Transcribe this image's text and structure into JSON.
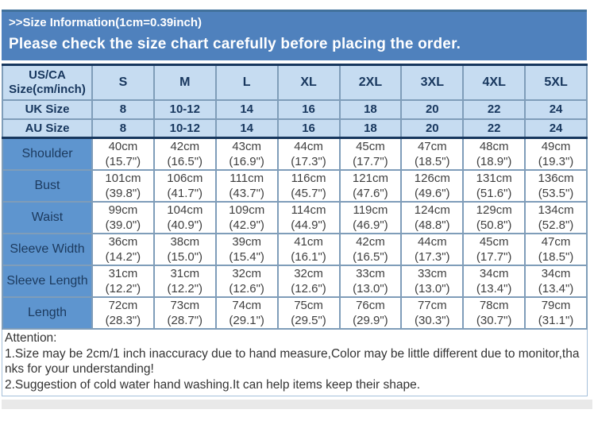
{
  "banner": {
    "title": ">>Size Information(1cm=0.39inch)",
    "subtitle": "Please check the size chart carefully before placing the order."
  },
  "colors": {
    "banner_bg": "#4F81BD",
    "banner_edge": "#41719c",
    "header_bg": "#C6DCF1",
    "label_bg": "#5E95CF",
    "grid_border": "#7f9db9",
    "dark_border": "#17375E",
    "header_text": "#17365D",
    "cell_text": "#3f3f3f",
    "note_text": "#333333"
  },
  "size_table": {
    "columns": [
      "US/CA\nSize(cm/inch)",
      "S",
      "M",
      "L",
      "XL",
      "2XL",
      "3XL",
      "4XL",
      "5XL"
    ],
    "size_rows": [
      {
        "label": "UK Size",
        "values": [
          "8",
          "10-12",
          "14",
          "16",
          "18",
          "20",
          "22",
          "24"
        ]
      },
      {
        "label": "AU Size",
        "values": [
          "8",
          "10-12",
          "14",
          "16",
          "18",
          "20",
          "22",
          "24"
        ]
      }
    ],
    "measure_rows": [
      {
        "label": "Shoulder",
        "cm": [
          "40cm",
          "42cm",
          "43cm",
          "44cm",
          "45cm",
          "47cm",
          "48cm",
          "49cm"
        ],
        "inch": [
          "(15.7\")",
          "(16.5\")",
          "(16.9\")",
          "(17.3\")",
          "(17.7\")",
          "(18.5\")",
          "(18.9\")",
          "(19.3\")"
        ]
      },
      {
        "label": "Bust",
        "cm": [
          "101cm",
          "106cm",
          "111cm",
          "116cm",
          "121cm",
          "126cm",
          "131cm",
          "136cm"
        ],
        "inch": [
          "(39.8\")",
          "(41.7\")",
          "(43.7\")",
          "(45.7\")",
          "(47.6\")",
          "(49.6\")",
          "(51.6\")",
          "(53.5\")"
        ]
      },
      {
        "label": "Waist",
        "cm": [
          "99cm",
          "104cm",
          "109cm",
          "114cm",
          "119cm",
          "124cm",
          "129cm",
          "134cm"
        ],
        "inch": [
          "(39.0\")",
          "(40.9\")",
          "(42.9\")",
          "(44.9\")",
          "(46.9\")",
          "(48.8\")",
          "(50.8\")",
          "(52.8\")"
        ]
      },
      {
        "label": "Sleeve Width",
        "cm": [
          "36cm",
          "38cm",
          "39cm",
          "41cm",
          "42cm",
          "44cm",
          "45cm",
          "47cm"
        ],
        "inch": [
          "(14.2\")",
          "(15.0\")",
          "(15.4\")",
          "(16.1\")",
          "(16.5\")",
          "(17.3\")",
          "(17.7\")",
          "(18.5\")"
        ]
      },
      {
        "label": "Sleeve Length",
        "cm": [
          "31cm",
          "31cm",
          "32cm",
          "32cm",
          "33cm",
          "33cm",
          "34cm",
          "34cm"
        ],
        "inch": [
          "(12.2\")",
          "(12.2\")",
          "(12.6\")",
          "(12.6\")",
          "(13.0\")",
          "(13.0\")",
          "(13.4\")",
          "(13.4\")"
        ]
      },
      {
        "label": "Length",
        "cm": [
          "72cm",
          "73cm",
          "74cm",
          "75cm",
          "76cm",
          "77cm",
          "78cm",
          "79cm"
        ],
        "inch": [
          "(28.3\")",
          "(28.7\")",
          "(29.1\")",
          "(29.5\")",
          "(29.9\")",
          "(30.3\")",
          "(30.7\")",
          "(31.1\")"
        ]
      }
    ]
  },
  "attention": {
    "title": "Attention:",
    "notes": [
      "1.Size may be 2cm/1 inch inaccuracy due to hand measure,Color may be little different due to monitor,thanks for your understanding!",
      "2.Suggestion of cold water hand washing.It can help items keep their shape."
    ]
  }
}
